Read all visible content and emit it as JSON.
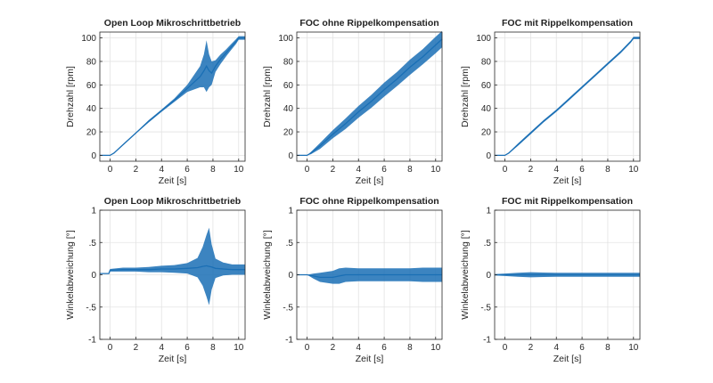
{
  "figure": {
    "background": "#ffffff",
    "series_color": "#1a6fb5",
    "grid": true
  },
  "chart_data": [
    {
      "type": "line",
      "title": "Open Loop Mikroschrittbetrieb",
      "xlabel": "Zeit  [s]",
      "ylabel": "Drehzahl [rpm]",
      "xlim": [
        -0.8,
        10.5
      ],
      "ylim": [
        -5,
        105
      ],
      "xticks": [
        0,
        2,
        4,
        6,
        8,
        10
      ],
      "yticks": [
        0,
        20,
        40,
        60,
        80,
        100
      ],
      "series": [
        {
          "x": [
            -0.8,
            0,
            0.3,
            1,
            2,
            3,
            4,
            5,
            6,
            6.5,
            7,
            7.3,
            7.5,
            7.7,
            7.9,
            8.2,
            8.6,
            9,
            9.4,
            9.8,
            10.0,
            10.5
          ],
          "y": [
            0,
            0,
            2,
            9,
            19,
            29,
            38,
            47,
            57,
            62,
            67,
            72,
            76,
            72,
            70,
            76,
            82,
            87,
            92,
            97,
            100,
            100
          ],
          "band": [
            0,
            0,
            0,
            0.5,
            0.5,
            1,
            1,
            1.5,
            3,
            6,
            9,
            14,
            22,
            14,
            10,
            5,
            4,
            3,
            2.5,
            2,
            1.5,
            1.5
          ]
        }
      ]
    },
    {
      "type": "line",
      "title": "FOC ohne Rippelkompensation",
      "xlabel": "Zeit  [s]",
      "ylabel": "Drehzahl [rpm]",
      "xlim": [
        -0.8,
        10.5
      ],
      "ylim": [
        -5,
        105
      ],
      "xticks": [
        0,
        2,
        4,
        6,
        8,
        10
      ],
      "yticks": [
        0,
        20,
        40,
        60,
        80,
        100
      ],
      "series": [
        {
          "x": [
            -0.8,
            0,
            0.3,
            1,
            2,
            3,
            4,
            5,
            6,
            7,
            8,
            9,
            10,
            10.5
          ],
          "y": [
            0,
            0,
            2,
            8,
            18,
            27,
            37,
            46,
            56,
            65,
            75,
            84,
            94,
            99
          ],
          "band": [
            0,
            0,
            1,
            2.5,
            3.5,
            4.5,
            5,
            5.5,
            6,
            6,
            6.5,
            6.5,
            7,
            7
          ]
        }
      ]
    },
    {
      "type": "line",
      "title": "FOC mit Rippelkompensation",
      "xlabel": "Zeit  [s]",
      "ylabel": "Drehzahl [rpm]",
      "xlim": [
        -0.8,
        10.5
      ],
      "ylim": [
        -5,
        105
      ],
      "xticks": [
        0,
        2,
        4,
        6,
        8,
        10
      ],
      "yticks": [
        0,
        20,
        40,
        60,
        80,
        100
      ],
      "series": [
        {
          "x": [
            -0.8,
            0,
            0.3,
            1,
            2,
            3,
            4,
            5,
            6,
            7,
            8,
            9,
            9.8,
            10.0,
            10.5
          ],
          "y": [
            0,
            0,
            2,
            9,
            19,
            29,
            38,
            48,
            58,
            68,
            78,
            88,
            97,
            100,
            100
          ],
          "band": [
            0,
            0,
            0.5,
            1,
            1,
            1,
            1,
            1,
            1,
            1,
            1,
            1,
            1,
            1,
            1
          ]
        }
      ]
    },
    {
      "type": "line",
      "title": "Open Loop Mikroschrittbetrieb",
      "xlabel": "Zeit  [s]",
      "ylabel": "Winkelabweichung [°]",
      "xlim": [
        -0.8,
        10.5
      ],
      "ylim": [
        -1,
        1
      ],
      "xticks": [
        0,
        2,
        4,
        6,
        8,
        10
      ],
      "yticks": [
        -1,
        -0.5,
        0,
        0.5,
        1
      ],
      "series": [
        {
          "x": [
            -0.8,
            -0.1,
            0,
            1,
            2,
            3,
            4,
            5,
            6,
            6.8,
            7.2,
            7.5,
            7.7,
            7.9,
            8.2,
            8.8,
            9.5,
            10.5
          ],
          "y": [
            0.02,
            0.02,
            0.07,
            0.08,
            0.08,
            0.08,
            0.09,
            0.09,
            0.1,
            0.11,
            0.13,
            0.14,
            0.13,
            0.12,
            0.1,
            0.09,
            0.08,
            0.08
          ],
          "band": [
            0,
            0,
            0.02,
            0.03,
            0.03,
            0.04,
            0.05,
            0.06,
            0.08,
            0.15,
            0.3,
            0.48,
            0.6,
            0.35,
            0.15,
            0.1,
            0.08,
            0.08
          ]
        }
      ]
    },
    {
      "type": "line",
      "title": "FOC ohne Rippelkompensation",
      "xlabel": "Zeit  [s]",
      "ylabel": "Winkelabweichung [°]",
      "xlim": [
        -0.8,
        10.5
      ],
      "ylim": [
        -1,
        1
      ],
      "xticks": [
        0,
        2,
        4,
        6,
        8,
        10
      ],
      "yticks": [
        -1,
        -0.5,
        0,
        0.5,
        1
      ],
      "series": [
        {
          "x": [
            -0.8,
            0,
            0.5,
            1,
            2,
            2.5,
            3,
            4,
            5,
            6,
            7,
            8,
            9,
            10,
            10.5
          ],
          "y": [
            0,
            0,
            -0.02,
            -0.04,
            -0.04,
            -0.02,
            0,
            0,
            0,
            0,
            0,
            0,
            0,
            0,
            0
          ],
          "band": [
            0,
            0,
            0.04,
            0.07,
            0.1,
            0.12,
            0.11,
            0.1,
            0.1,
            0.1,
            0.1,
            0.1,
            0.11,
            0.11,
            0.11
          ]
        }
      ]
    },
    {
      "type": "line",
      "title": "FOC mit Rippelkompensation",
      "xlabel": "Zeit  [s]",
      "ylabel": "Winkelabweichung [°]",
      "xlim": [
        -0.8,
        10.5
      ],
      "ylim": [
        -1,
        1
      ],
      "xticks": [
        0,
        2,
        4,
        6,
        8,
        10
      ],
      "yticks": [
        -1,
        -0.5,
        0,
        0.5,
        1
      ],
      "series": [
        {
          "x": [
            -0.8,
            0,
            1,
            2,
            3,
            4,
            5,
            6,
            7,
            8,
            9,
            10,
            10.5
          ],
          "y": [
            0,
            0,
            0,
            0,
            0,
            0,
            0,
            0,
            0,
            0,
            0,
            0,
            0
          ],
          "band": [
            0.01,
            0.02,
            0.03,
            0.04,
            0.035,
            0.03,
            0.03,
            0.03,
            0.03,
            0.03,
            0.03,
            0.03,
            0.03
          ]
        }
      ]
    }
  ]
}
